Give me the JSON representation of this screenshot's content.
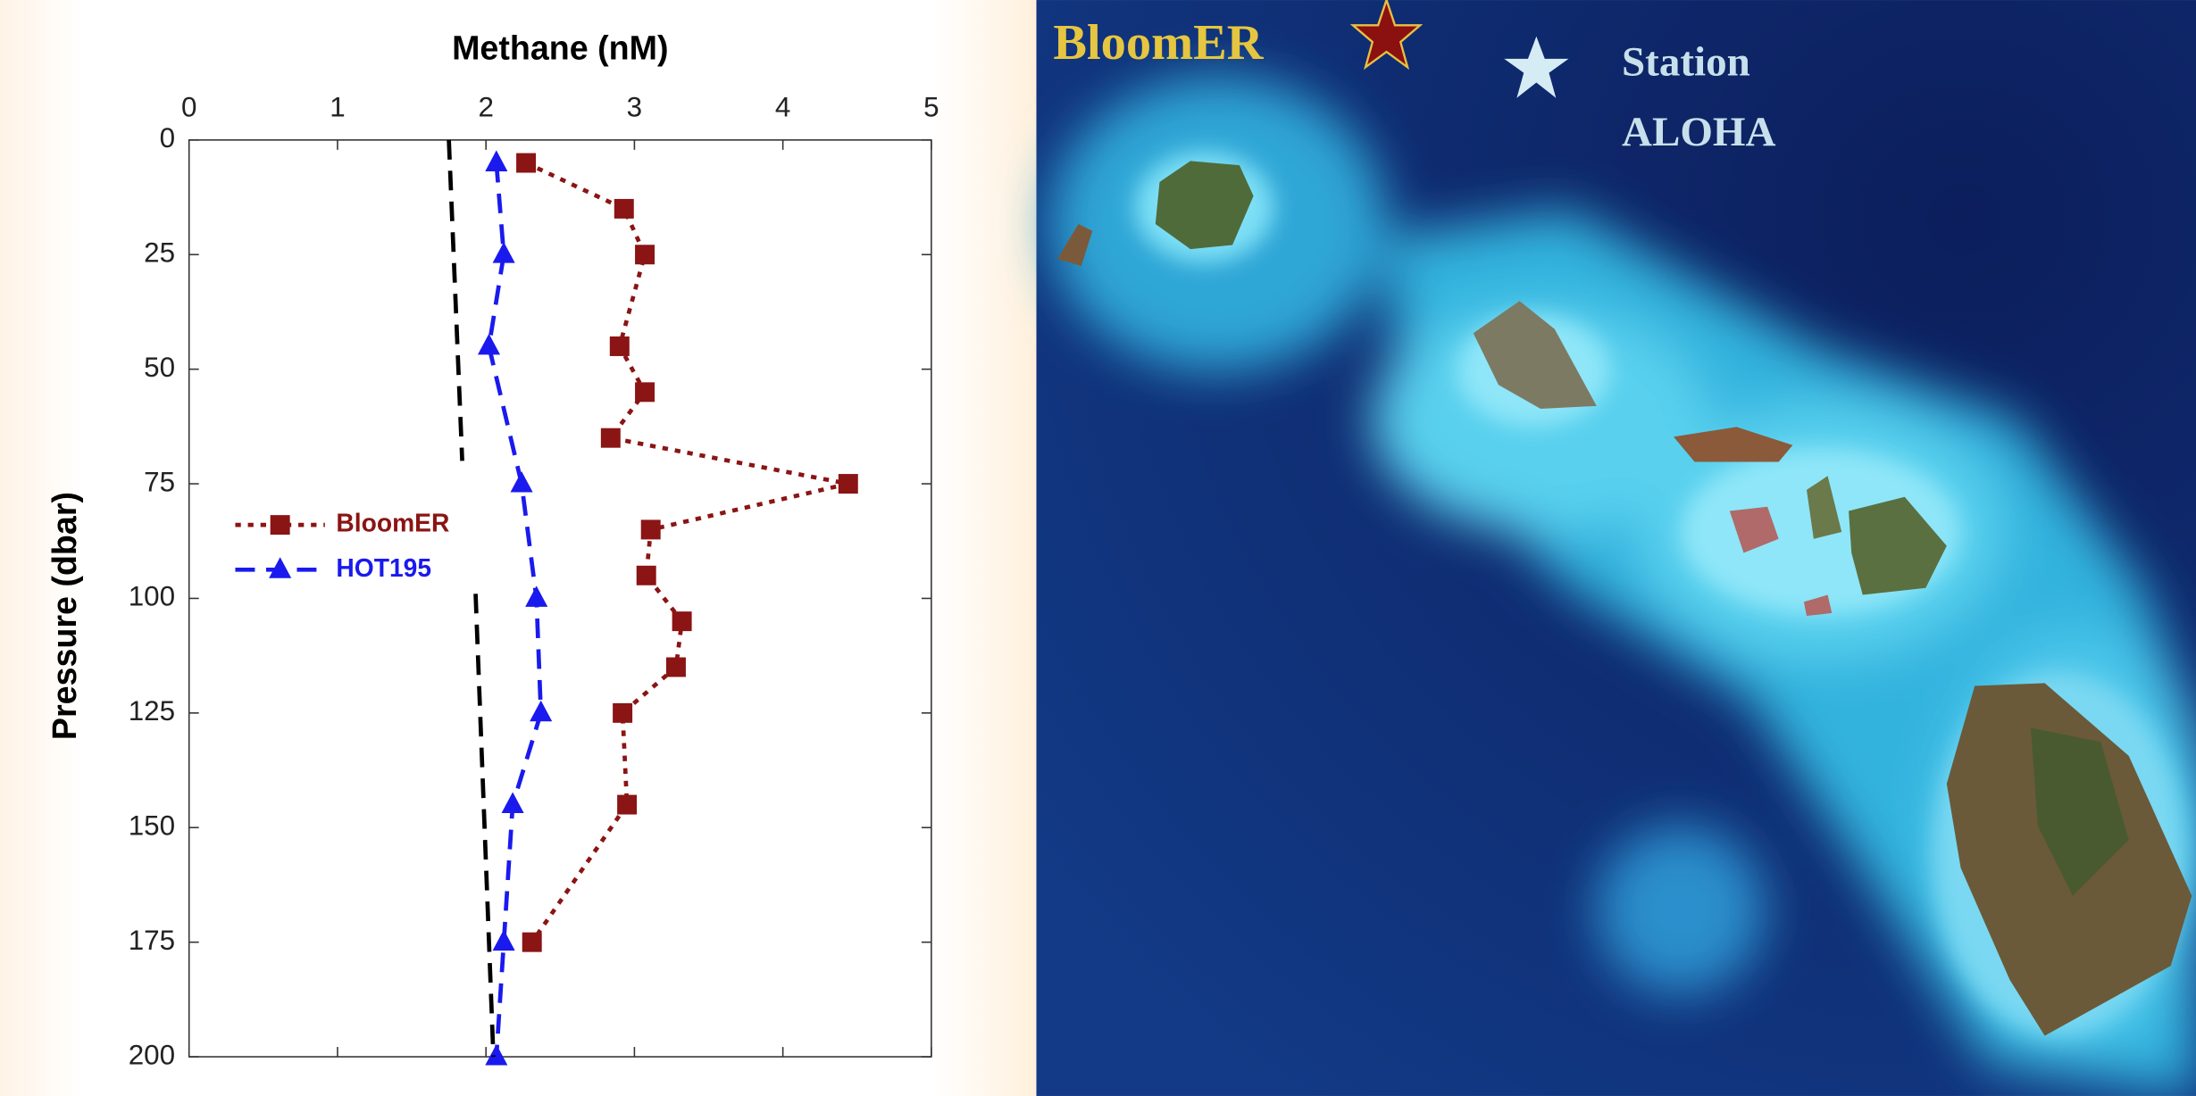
{
  "chart_data": {
    "type": "line",
    "title": "Methane (nM)",
    "ylabel": "Pressure (dbar)",
    "xlim": [
      0,
      5
    ],
    "xticks": [
      0,
      1,
      2,
      3,
      4,
      5
    ],
    "ylim": [
      0,
      200
    ],
    "yticks": [
      0,
      25,
      50,
      75,
      100,
      125,
      150,
      175,
      200
    ],
    "y_inverted": true,
    "series": [
      {
        "name": "BloomER",
        "color": "#8b1414",
        "marker": "square",
        "dash": "dotted",
        "pressure": [
          5,
          15,
          25,
          45,
          55,
          65,
          75,
          85,
          95,
          105,
          115,
          125,
          145,
          175
        ],
        "values": [
          2.27,
          2.93,
          3.07,
          2.9,
          3.07,
          2.84,
          4.44,
          3.11,
          3.08,
          3.32,
          3.28,
          2.92,
          2.95,
          2.31
        ]
      },
      {
        "name": "HOT195",
        "color": "#1a1aee",
        "marker": "triangle",
        "dash": "dashed",
        "pressure": [
          5,
          25,
          45,
          75,
          100,
          125,
          145,
          175,
          200
        ],
        "values": [
          2.07,
          2.12,
          2.02,
          2.24,
          2.34,
          2.37,
          2.18,
          2.12,
          2.07
        ]
      },
      {
        "color": "#000000",
        "marker": "none",
        "dash": "dashed",
        "pressure": [
          0,
          70
        ],
        "values": [
          1.75,
          1.84
        ]
      },
      {
        "color": "#000000",
        "marker": "none",
        "dash": "dashed",
        "pressure": [
          99,
          200
        ],
        "values": [
          1.93,
          2.05
        ]
      }
    ]
  },
  "map": {
    "labels": {
      "bloomer": "BloomER",
      "station": "Station",
      "aloha": "ALOHA"
    }
  }
}
